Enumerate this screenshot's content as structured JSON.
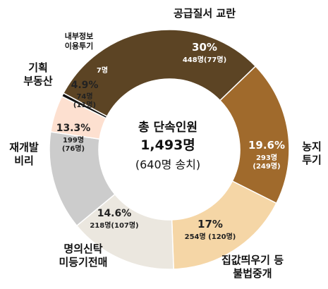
{
  "chart_data": {
    "type": "pie",
    "donut": true,
    "center": {
      "line1": "총 단속인원",
      "line2": "1,493명",
      "line3": "(640명 송치)"
    },
    "slices": [
      {
        "category_lines": [
          "공급질서 교란"
        ],
        "percent_label": "30%",
        "count_label_lines": [
          "448명(77명)"
        ],
        "value": 448,
        "color": "#5c4424",
        "text_color": "#ffffff"
      },
      {
        "category_lines": [
          "농지",
          "투기"
        ],
        "percent_label": "19.6%",
        "count_label_lines": [
          "293명",
          "(249명)"
        ],
        "value": 293,
        "color": "#a06a2c",
        "text_color": "#ffffff"
      },
      {
        "category_lines": [
          "집값띄우기 등",
          "불법중개"
        ],
        "percent_label": "17%",
        "count_label_lines": [
          "254명 (120명)"
        ],
        "value": 254,
        "color": "#f5d6a6",
        "text_color": "#222222"
      },
      {
        "category_lines": [
          "명의신탁",
          "미등기전매"
        ],
        "percent_label": "14.6%",
        "count_label_lines": [
          "218명(107명)"
        ],
        "value": 218,
        "color": "#ebe7df",
        "text_color": "#222222"
      },
      {
        "category_lines": [
          "재개발",
          "비리"
        ],
        "percent_label": "13.3%",
        "count_label_lines": [
          "199명",
          "(76명)"
        ],
        "value": 199,
        "color": "#cccccc",
        "text_color": "#222222"
      },
      {
        "category_lines": [
          "기획",
          "부동산"
        ],
        "percent_label": "4.9%",
        "count_label_lines": [
          "74명",
          "(11명)"
        ],
        "value": 74,
        "color": "#fde0d0",
        "text_color": "#222222"
      },
      {
        "category_lines": [
          "내부정보",
          "이용투기"
        ],
        "percent_label": "",
        "count_label_lines": [
          "7명"
        ],
        "value": 7,
        "color": "#111111",
        "text_color": "#ffffff"
      }
    ]
  }
}
